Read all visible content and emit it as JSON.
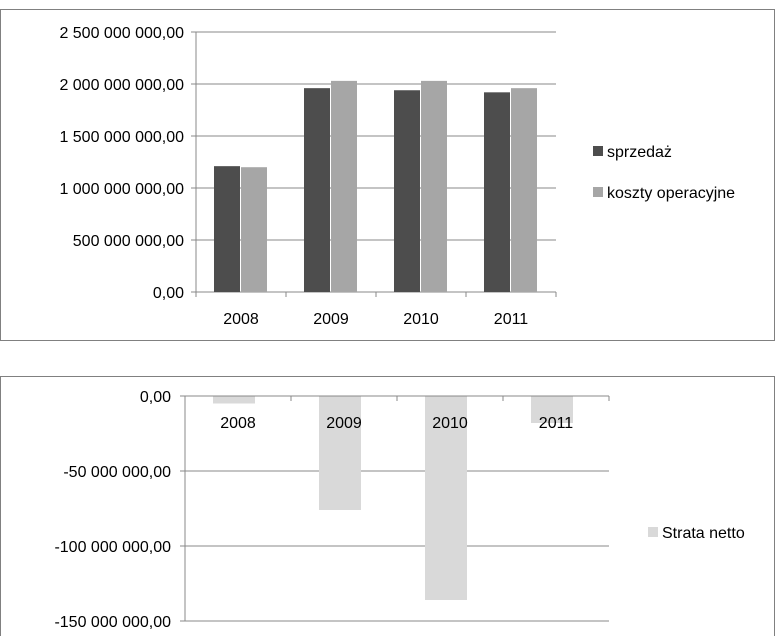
{
  "chart_data": [
    {
      "type": "bar",
      "categories": [
        "2008",
        "2009",
        "2010",
        "2011"
      ],
      "series": [
        {
          "name": "sprzedaż",
          "values": [
            1210000000,
            1960000000,
            1940000000,
            1920000000
          ],
          "color": "#4d4d4d"
        },
        {
          "name": "koszty operacyjne",
          "values": [
            1200000000,
            2030000000,
            2030000000,
            1960000000
          ],
          "color": "#a6a6a6"
        }
      ],
      "yticks": [
        {
          "value": 0,
          "label": "0,00"
        },
        {
          "value": 500000000,
          "label": "500 000 000,00"
        },
        {
          "value": 1000000000,
          "label": "1 000 000 000,00"
        },
        {
          "value": 1500000000,
          "label": "1 500 000 000,00"
        },
        {
          "value": 2000000000,
          "label": "2 000 000 000,00"
        },
        {
          "value": 2500000000,
          "label": "2 500 000 000,00"
        }
      ],
      "ylim": [
        0,
        2500000000
      ],
      "grid": true,
      "legend": "right"
    },
    {
      "type": "bar",
      "categories": [
        "2008",
        "2009",
        "2010",
        "2011"
      ],
      "series": [
        {
          "name": "Strata netto",
          "values": [
            -5000000,
            -76000000,
            -136000000,
            -18000000
          ],
          "color": "#d9d9d9"
        }
      ],
      "yticks": [
        {
          "value": 0,
          "label": "0,00"
        },
        {
          "value": -50000000,
          "label": "-50 000 000,00"
        },
        {
          "value": -100000000,
          "label": "-100 000 000,00"
        },
        {
          "value": -150000000,
          "label": "-150 000 000,00"
        }
      ],
      "ylim": [
        -150000000,
        0
      ],
      "grid": true,
      "legend": "right"
    }
  ]
}
